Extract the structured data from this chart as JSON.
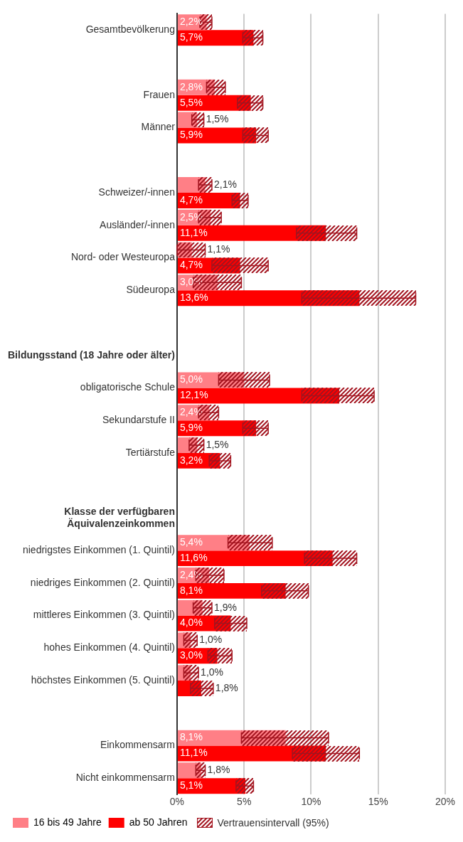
{
  "chart_data": {
    "type": "bar",
    "orientation": "horizontal",
    "categories": [
      "Gesamtbevölkerung",
      null,
      "Frauen",
      "Männer",
      null,
      "Schweizer/-innen",
      "Ausländer/-innen",
      "Nord- oder Westeuropa",
      "Südeuropa",
      null,
      "Bildungsstand (18 Jahre oder älter)",
      "obligatorische Schule",
      "Sekundarstufe II",
      "Tertiärstufe",
      null,
      "Klasse der verfügbaren Äquivalenzeinkommen",
      "niedrigstes Einkommen (1. Quintil)",
      "niedriges Einkommen (2. Quintil)",
      "mittleres Einkommen (3. Quintil)",
      "hohes Einkommen (4. Quintil)",
      "höchstes Einkommen (5. Quintil)",
      null,
      "Einkommensarm",
      "Nicht einkommensarm"
    ],
    "series": [
      {
        "name": "16 bis 49 Jahre",
        "color": "#ff7f86",
        "values": [
          2.2,
          null,
          2.8,
          1.5,
          null,
          2.1,
          2.5,
          1.1,
          3.0,
          null,
          null,
          5.0,
          2.4,
          1.5,
          null,
          null,
          5.4,
          2.4,
          1.9,
          1.0,
          1.0,
          null,
          8.1,
          1.8
        ],
        "errors": [
          [
            1.7,
            2.6
          ],
          null,
          [
            2.2,
            3.6
          ],
          [
            1.1,
            2.0
          ],
          null,
          [
            1.6,
            2.6
          ],
          [
            1.6,
            3.3
          ],
          [
            0.0,
            2.1
          ],
          [
            1.2,
            4.8
          ],
          null,
          null,
          [
            3.1,
            6.9
          ],
          [
            1.6,
            3.1
          ],
          [
            0.9,
            2.0
          ],
          null,
          null,
          [
            3.8,
            7.1
          ],
          [
            1.4,
            3.5
          ],
          [
            1.2,
            2.6
          ],
          [
            0.5,
            1.5
          ],
          [
            0.5,
            1.6
          ],
          null,
          [
            4.8,
            11.3
          ],
          [
            1.4,
            2.1
          ]
        ],
        "value_labels": [
          "2,2%",
          null,
          "2,8%",
          "1,5%",
          null,
          "2,1%",
          "2,5%",
          "1,1%",
          "3,0%",
          null,
          null,
          "5,0%",
          "2,4%",
          "1,5%",
          null,
          null,
          "5,4%",
          "2,4%",
          "1,9%",
          "1,0%",
          "1,0%",
          null,
          "8,1%",
          "1,8%"
        ]
      },
      {
        "name": "ab 50 Jahren",
        "color": "#ff0000",
        "values": [
          5.7,
          null,
          5.5,
          5.9,
          null,
          4.7,
          11.1,
          4.7,
          13.6,
          null,
          null,
          12.1,
          5.9,
          3.2,
          null,
          null,
          11.6,
          8.1,
          4.0,
          3.0,
          1.8,
          null,
          11.1,
          5.1
        ],
        "errors": [
          [
            4.9,
            6.4
          ],
          null,
          [
            4.5,
            6.4
          ],
          [
            4.9,
            6.8
          ],
          null,
          [
            4.1,
            5.3
          ],
          [
            8.9,
            13.4
          ],
          [
            2.6,
            6.8
          ],
          [
            9.3,
            17.8
          ],
          null,
          null,
          [
            9.3,
            14.7
          ],
          [
            4.9,
            6.8
          ],
          [
            2.4,
            4.0
          ],
          null,
          null,
          [
            9.5,
            13.4
          ],
          [
            6.3,
            9.8
          ],
          [
            2.8,
            5.2
          ],
          [
            2.3,
            4.1
          ],
          [
            1.0,
            2.7
          ],
          null,
          [
            8.6,
            13.6
          ],
          [
            4.4,
            5.7
          ]
        ],
        "value_labels": [
          "5,7%",
          null,
          "5,5%",
          "5,9%",
          null,
          "4,7%",
          "11,1%",
          "4,7%",
          "13,6%",
          null,
          null,
          "12,1%",
          "5,9%",
          "3,2%",
          null,
          null,
          "11,6%",
          "8,1%",
          "4,0%",
          "3,0%",
          "1,8%",
          null,
          "11,1%",
          "5,1%"
        ]
      }
    ],
    "xlim": [
      0,
      20
    ],
    "xticks": [
      {
        "value": 0,
        "label": "0%"
      },
      {
        "value": 5,
        "label": "5%"
      },
      {
        "value": 10,
        "label": "10%"
      },
      {
        "value": 15,
        "label": "15%"
      },
      {
        "value": 20,
        "label": "20%"
      }
    ],
    "grid": "x",
    "legend": "bottom left",
    "annotations": [
      "Vertrauensintervall (95%)"
    ]
  }
}
